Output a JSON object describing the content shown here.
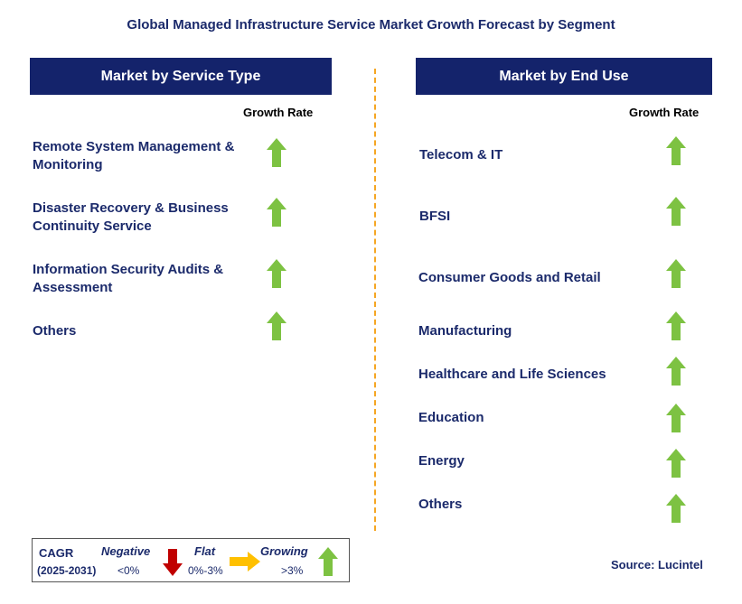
{
  "title": "Global Managed Infrastructure Service Market Growth Forecast by Segment",
  "colors": {
    "header_bg": "#14236b",
    "text": "#1b2a6b",
    "growing": "#7dc242",
    "negative": "#c00000",
    "flat": "#ffc000",
    "divider": "#f5a623"
  },
  "chart_data": [
    {
      "type": "table",
      "title": "Market by Service Type",
      "column_header": "Growth Rate",
      "rows": [
        {
          "label": "Remote System Management & Monitoring",
          "growth": "growing"
        },
        {
          "label": "Disaster Recovery & Business Continuity Service",
          "growth": "growing"
        },
        {
          "label": "Information Security Audits & Assessment",
          "growth": "growing"
        },
        {
          "label": "Others",
          "growth": "growing"
        }
      ]
    },
    {
      "type": "table",
      "title": "Market by End Use",
      "column_header": "Growth Rate",
      "rows": [
        {
          "label": "Telecom & IT",
          "growth": "growing"
        },
        {
          "label": "BFSI",
          "growth": "growing"
        },
        {
          "label": "Consumer Goods and Retail",
          "growth": "growing"
        },
        {
          "label": "Manufacturing",
          "growth": "growing"
        },
        {
          "label": "Healthcare and Life Sciences",
          "growth": "growing"
        },
        {
          "label": "Education",
          "growth": "growing"
        },
        {
          "label": "Energy",
          "growth": "growing"
        },
        {
          "label": "Others",
          "growth": "growing"
        }
      ]
    }
  ],
  "legend": {
    "cagr": "CAGR",
    "period": "(2025-2031)",
    "negative": {
      "label": "Negative",
      "range": "<0%"
    },
    "flat": {
      "label": "Flat",
      "range": "0%-3%"
    },
    "growing": {
      "label": "Growing",
      "range": ">3%"
    }
  },
  "source": "Source: Lucintel"
}
